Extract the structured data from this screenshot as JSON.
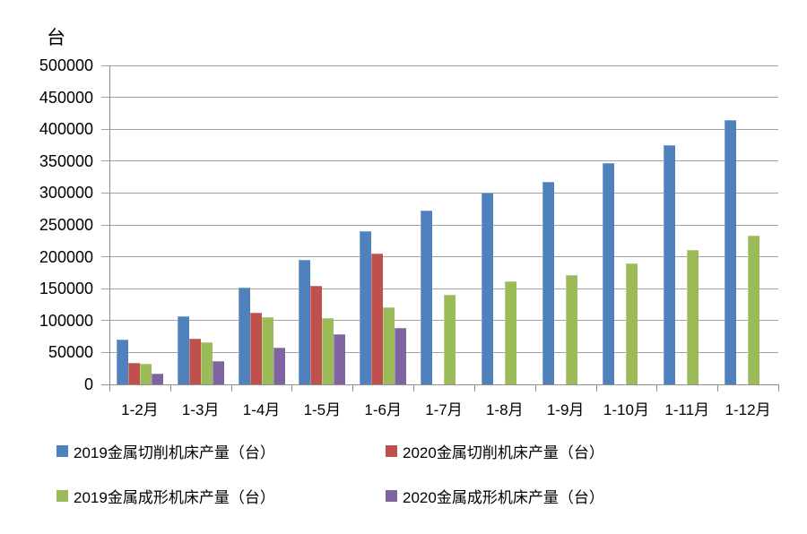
{
  "chart_data": {
    "type": "bar",
    "unit_label": "台",
    "categories": [
      "1-2月",
      "1-3月",
      "1-4月",
      "1-5月",
      "1-6月",
      "1-7月",
      "1-8月",
      "1-9月",
      "1-10月",
      "1-11月",
      "1-12月"
    ],
    "series": [
      {
        "name": "2019金属切削机床产量（台）",
        "color": "#4F81BD",
        "values": [
          70000,
          107000,
          152000,
          195000,
          240000,
          272000,
          300000,
          317000,
          347000,
          375000,
          415000
        ]
      },
      {
        "name": "2020金属切削机床产量（台）",
        "color": "#C0504D",
        "values": [
          34000,
          72000,
          113000,
          154000,
          205000,
          null,
          null,
          null,
          null,
          null,
          null
        ]
      },
      {
        "name": "2019金属成形机床产量（台）",
        "color": "#9BBB59",
        "values": [
          32000,
          66000,
          106000,
          104000,
          121000,
          141000,
          162000,
          172000,
          190000,
          211000,
          233000
        ]
      },
      {
        "name": "2020金属成形机床产量（台）",
        "color": "#8064A2",
        "values": [
          17000,
          36000,
          58000,
          78000,
          89000,
          null,
          null,
          null,
          null,
          null,
          null
        ]
      }
    ],
    "ylim": [
      0,
      500000
    ],
    "ytick_step": 50000,
    "yticks": [
      "0",
      "50000",
      "100000",
      "150000",
      "200000",
      "250000",
      "300000",
      "350000",
      "400000",
      "450000",
      "500000"
    ],
    "grid": true,
    "legend_position": "bottom"
  },
  "colors": {
    "gridline": "#A3A3A3",
    "axis": "#8F8F8F",
    "text": "#000000",
    "background": "#FFFFFF"
  }
}
